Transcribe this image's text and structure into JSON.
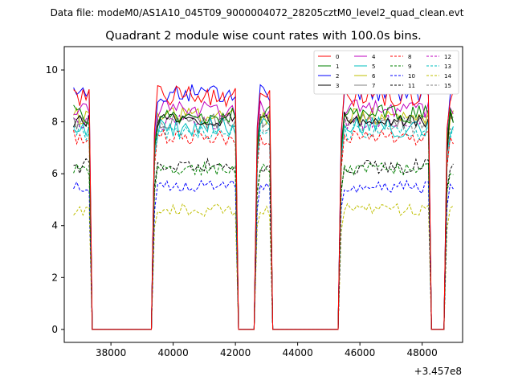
{
  "chart_data": {
    "type": "line",
    "suptitle": "Data file: modeM0/AS1A10_045T09_9000004072_28205cztM0_level2_quad_clean.evt",
    "title": "Quadrant 2 module wise count rates with 100.0s bins.",
    "xlabel": "",
    "ylabel": "",
    "x_offset_label": "+3.457e8",
    "xlim": [
      36500,
      49300
    ],
    "ylim": [
      -0.5,
      10.9
    ],
    "x_ticks": [
      38000,
      40000,
      42000,
      44000,
      46000,
      48000
    ],
    "x_tick_labels": [
      "38000",
      "40000",
      "42000",
      "44000",
      "46000",
      "48000"
    ],
    "y_ticks": [
      0,
      2,
      4,
      6,
      8,
      10
    ],
    "y_tick_labels": [
      "0",
      "2",
      "4",
      "6",
      "8",
      "10"
    ],
    "legend_position": "upper right",
    "legend_columns": 4,
    "segments": [
      [
        36800,
        37300
      ],
      [
        39400,
        42000
      ],
      [
        42700,
        43100
      ],
      [
        45400,
        48200
      ],
      [
        48800,
        49000
      ]
    ],
    "gaps": [
      [
        37500,
        39300
      ],
      [
        42100,
        42500
      ],
      [
        43300,
        45300
      ],
      [
        48300,
        48700
      ]
    ],
    "series": [
      {
        "name": "0",
        "color": "#ff0000",
        "dash": "solid",
        "level": 9.0,
        "noise": 0.4
      },
      {
        "name": "1",
        "color": "#008000",
        "dash": "solid",
        "level": 8.3,
        "noise": 0.35
      },
      {
        "name": "2",
        "color": "#0000ff",
        "dash": "solid",
        "level": 9.1,
        "noise": 0.35
      },
      {
        "name": "3",
        "color": "#000000",
        "dash": "solid",
        "level": 8.1,
        "noise": 0.3
      },
      {
        "name": "4",
        "color": "#bf00bf",
        "dash": "solid",
        "level": 8.5,
        "noise": 0.35
      },
      {
        "name": "5",
        "color": "#00bfbf",
        "dash": "solid",
        "level": 7.8,
        "noise": 0.4
      },
      {
        "name": "6",
        "color": "#bfbf00",
        "dash": "solid",
        "level": 8.2,
        "noise": 0.35
      },
      {
        "name": "7",
        "color": "#808080",
        "dash": "solid",
        "level": 8.0,
        "noise": 0.3
      },
      {
        "name": "8",
        "color": "#ff0000",
        "dash": "dashed",
        "level": 7.4,
        "noise": 0.3
      },
      {
        "name": "9",
        "color": "#008000",
        "dash": "dashed",
        "level": 6.2,
        "noise": 0.25
      },
      {
        "name": "10",
        "color": "#0000ff",
        "dash": "dashed",
        "level": 5.5,
        "noise": 0.25
      },
      {
        "name": "11",
        "color": "#000000",
        "dash": "dashed",
        "level": 6.3,
        "noise": 0.3
      },
      {
        "name": "12",
        "color": "#bf00bf",
        "dash": "dashed",
        "level": 8.0,
        "noise": 0.3
      },
      {
        "name": "13",
        "color": "#00bfbf",
        "dash": "dashed",
        "level": 7.6,
        "noise": 0.3
      },
      {
        "name": "14",
        "color": "#bfbf00",
        "dash": "dashed",
        "level": 4.6,
        "noise": 0.25
      },
      {
        "name": "15",
        "color": "#808080",
        "dash": "dashed",
        "level": 7.9,
        "noise": 0.3
      }
    ]
  }
}
